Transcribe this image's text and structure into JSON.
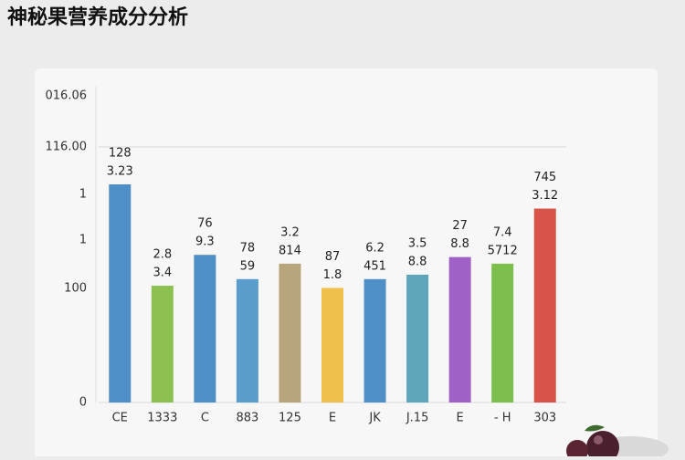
{
  "chart_data": {
    "type": "bar",
    "title": "神秘果营养成分分析",
    "categories": [
      "CE",
      "1333",
      "C",
      "883",
      "125",
      "E",
      "JK",
      "J.15",
      "E",
      "- H",
      "303"
    ],
    "values": [
      99,
      53,
      67,
      56,
      63,
      52,
      56,
      58,
      66,
      63,
      88
    ],
    "colors": [
      "#4f8fc8",
      "#8cc152",
      "#4f8fc8",
      "#5a9ccc",
      "#b9a57c",
      "#f0c04c",
      "#4f8fc8",
      "#5fa6bb",
      "#a061c6",
      "#7cbf4c",
      "#d9534a"
    ],
    "bar_labels": [
      [
        "128",
        "3.23"
      ],
      [
        "2.8",
        "3.4"
      ],
      [
        "76",
        "9.3"
      ],
      [
        "78",
        "59"
      ],
      [
        "3.2",
        "814"
      ],
      [
        "87",
        "1.8"
      ],
      [
        "6.2",
        "451"
      ],
      [
        "3.5",
        "8.8"
      ],
      [
        "27",
        "8.8"
      ],
      [
        "7.4",
        "5712"
      ],
      [
        "745",
        "3.12"
      ]
    ],
    "ylim": [
      0,
      140
    ],
    "yticks": [
      0,
      {
        "value": 116,
        "label": "116.00"
      }
    ],
    "y_axis_notes": [
      "016.06",
      "1",
      "1",
      "100"
    ],
    "grid": true
  }
}
